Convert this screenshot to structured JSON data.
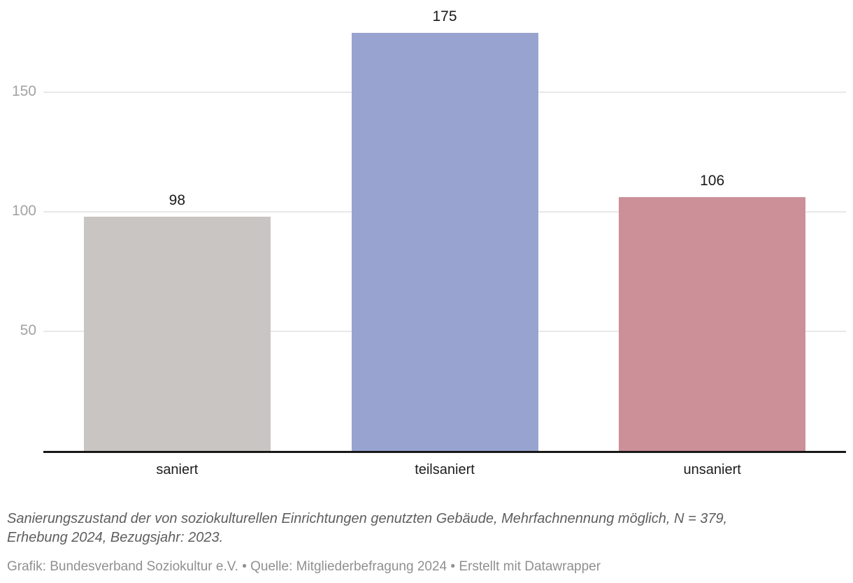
{
  "chart_data": {
    "type": "bar",
    "title": "",
    "categories": [
      "saniert",
      "teilsaniert",
      "unsaniert"
    ],
    "values": [
      98,
      175,
      106
    ],
    "bar_colors": [
      "#c9c5c2",
      "#98a4cf",
      "#cc9098"
    ],
    "yticks": [
      50,
      100,
      150
    ],
    "ylim": [
      0,
      189
    ],
    "grid": true,
    "legend_position": "none",
    "value_labels_shown": true,
    "xlabel": "",
    "ylabel": "",
    "gridline_color": "#e9e9e9",
    "baseline_color": "#181818",
    "tick_label_color": "#a3a3a3",
    "value_label_color": "#1a1a1a",
    "category_label_color": "#1d1d1d"
  },
  "caption": {
    "line1": "Sanierungszustand der von soziokulturellen Einrichtungen genutzten Gebäude, Mehrfachnennung möglich, N = 379,",
    "line2": "Erhebung 2024, Bezugsjahr: 2023."
  },
  "credit": "Grafik: Bundesverband Soziokultur e.V. • Quelle: Mitgliederbefragung 2024 • Erstellt mit Datawrapper"
}
